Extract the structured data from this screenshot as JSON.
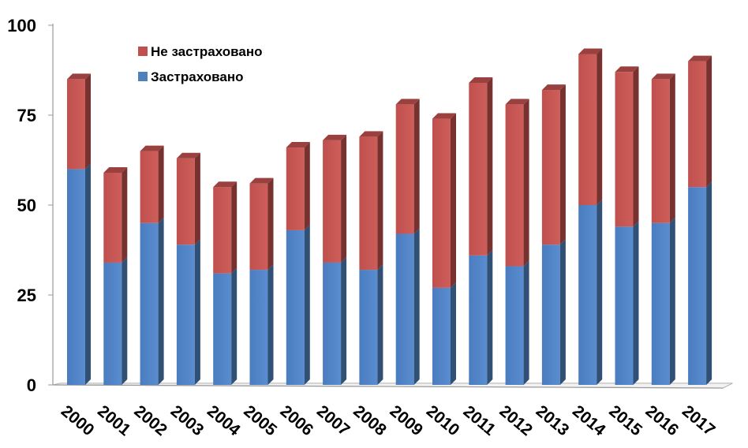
{
  "chart_data": {
    "type": "bar",
    "stacked": true,
    "three_d": true,
    "categories": [
      "2000",
      "2001",
      "2002",
      "2003",
      "2004",
      "2005",
      "2006",
      "2007",
      "2008",
      "2009",
      "2010",
      "2011",
      "2012",
      "2013",
      "2014",
      "2015",
      "2016",
      "2017"
    ],
    "series": [
      {
        "name": "Застраховано",
        "color": "#4f81bd",
        "values": [
          60,
          34,
          45,
          39,
          31,
          32,
          43,
          34,
          32,
          42,
          27,
          36,
          33,
          39,
          50,
          44,
          45,
          55
        ]
      },
      {
        "name": "Не застраховано",
        "color": "#c0504d",
        "values": [
          25,
          25,
          20,
          24,
          24,
          24,
          23,
          34,
          37,
          36,
          47,
          48,
          45,
          43,
          42,
          43,
          40,
          35
        ]
      }
    ],
    "y_ticks": [
      "0",
      "25",
      "50",
      "75",
      "100"
    ],
    "ylim": [
      0,
      100
    ],
    "legend_position": "top-left",
    "legend_order": [
      "Не застраховано",
      "Застраховано"
    ],
    "grid": false
  }
}
